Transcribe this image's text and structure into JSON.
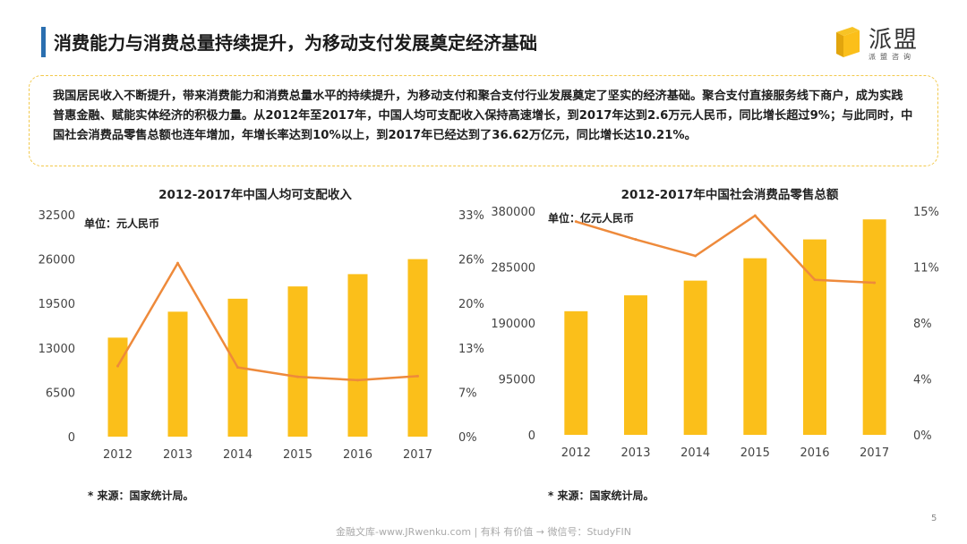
{
  "header": {
    "title": "消费能力与消费总量持续提升，为移动支付发展奠定经济基础"
  },
  "logo": {
    "name": "派盟",
    "sub": "派盟咨询"
  },
  "summary": {
    "text": "我国居民收入不断提升，带来消费能力和消费总量水平的持续提升，为移动支付和聚合支付行业发展奠定了坚实的经济基础。聚合支付直接服务线下商户，成为实践普惠金融、赋能实体经济的积极力量。从2012年至2017年，中国人均可支配收入保持高速增长，到2017年达到2.6万元人民币，同比增长超过9%；与此同时，中国社会消费品零售总额也连年增加，年增长率达到10%以上，到2017年已经达到了36.62万亿元，同比增长达10.21%。"
  },
  "colors": {
    "bar": "#fbbf1a",
    "line": "#ee8a3b",
    "accent": "#2b6fb0",
    "box_border": "#f2c94c"
  },
  "chart_data": [
    {
      "type": "bar",
      "title": "2012-2017年中国人均可支配收入",
      "unit_label": "单位：元人民币",
      "categories": [
        "2012",
        "2013",
        "2014",
        "2015",
        "2016",
        "2017"
      ],
      "series": [
        {
          "values": [
            14500,
            18300,
            20200,
            22000,
            23800,
            26000
          ],
          "axis": "left",
          "type": "bar"
        },
        {
          "values": [
            10.5,
            25.8,
            10.3,
            8.9,
            8.4,
            9.0
          ],
          "axis": "right",
          "type": "line"
        }
      ],
      "y_left": {
        "min": 0,
        "max": 32500,
        "ticks": [
          "0",
          "6500",
          "13000",
          "19500",
          "26000",
          "32500"
        ]
      },
      "y_right": {
        "min": 0,
        "max": 33,
        "ticks": [
          "0%",
          "7%",
          "13%",
          "20%",
          "26%",
          "33%"
        ]
      },
      "source": "* 来源：国家统计局。"
    },
    {
      "type": "bar",
      "title": "2012-2017年中国社会消费品零售总额",
      "unit_label": "单位：亿元人民币",
      "categories": [
        "2012",
        "2013",
        "2014",
        "2015",
        "2016",
        "2017"
      ],
      "series": [
        {
          "values": [
            210000,
            237000,
            262000,
            300000,
            332000,
            366000
          ],
          "axis": "left",
          "type": "bar"
        },
        {
          "values": [
            14.3,
            13.1,
            12.0,
            14.7,
            10.4,
            10.2
          ],
          "axis": "right",
          "type": "line"
        }
      ],
      "y_left": {
        "min": 0,
        "max": 380000,
        "ticks": [
          "0",
          "95000",
          "190000",
          "285000",
          "380000"
        ]
      },
      "y_right": {
        "min": 0,
        "max": 15,
        "ticks": [
          "0%",
          "4%",
          "8%",
          "11%",
          "15%"
        ]
      },
      "source": "* 来源：国家统计局。"
    }
  ],
  "footer": {
    "text": "金融文库-www.JRwenku.com | 有料 有价值 → 微信号：StudyFIN",
    "page": "5"
  }
}
